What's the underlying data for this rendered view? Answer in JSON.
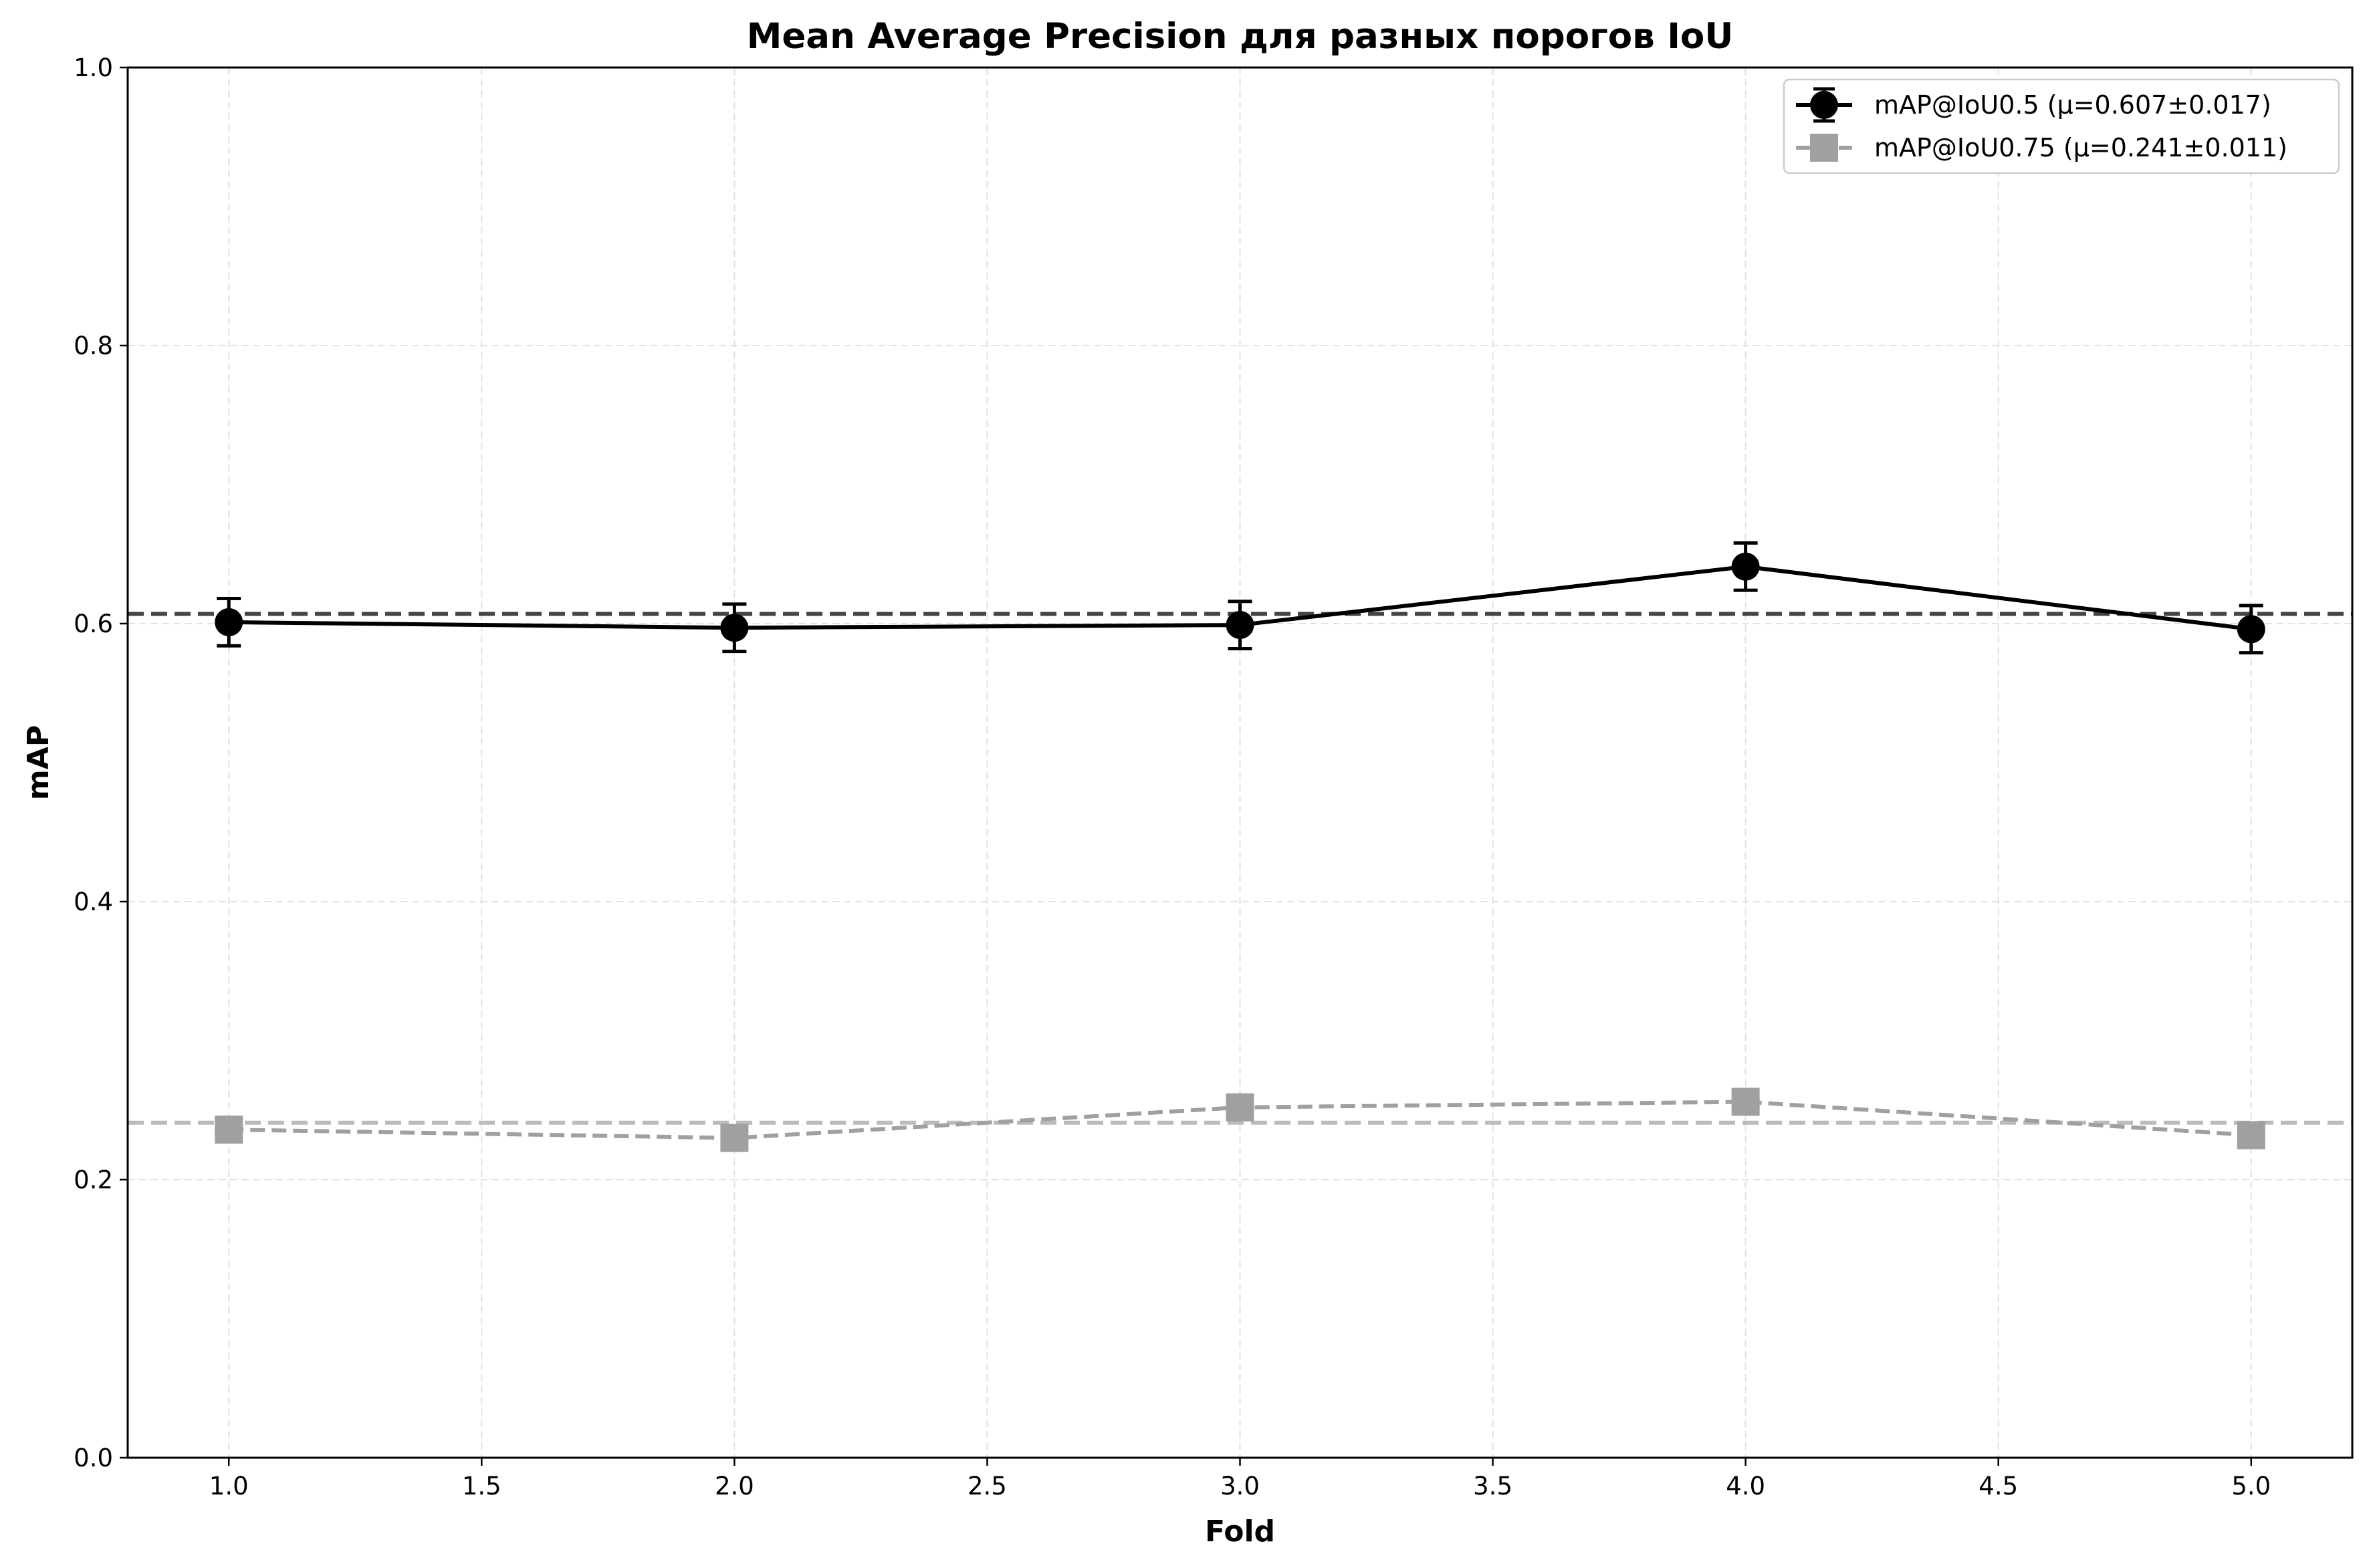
{
  "chart_data": {
    "type": "line",
    "title": "Mean Average Precision для разных порогов IoU",
    "xlabel": "Fold",
    "ylabel": "mAP",
    "xlim": [
      0.8,
      5.2
    ],
    "ylim": [
      0.0,
      1.0
    ],
    "xticks": [
      1.0,
      1.5,
      2.0,
      2.5,
      3.0,
      3.5,
      4.0,
      4.5,
      5.0
    ],
    "xtick_labels": [
      "1.0",
      "1.5",
      "2.0",
      "2.5",
      "3.0",
      "3.5",
      "4.0",
      "4.5",
      "5.0"
    ],
    "yticks": [
      0.0,
      0.2,
      0.4,
      0.6,
      0.8,
      1.0
    ],
    "ytick_labels": [
      "0.0",
      "0.2",
      "0.4",
      "0.6",
      "0.8",
      "1.0"
    ],
    "grid": true,
    "legend_position": "top-right",
    "x": [
      1,
      2,
      3,
      4,
      5
    ],
    "series": [
      {
        "name": "mAP@IoU0.5 (μ=0.607±0.017)",
        "values": [
          0.601,
          0.597,
          0.599,
          0.641,
          0.596
        ],
        "errors": [
          0.017,
          0.017,
          0.017,
          0.017,
          0.017
        ],
        "mean": 0.607,
        "color": "#000000",
        "mean_line_color": "#444444",
        "marker": "circle",
        "line_style": "solid"
      },
      {
        "name": "mAP@IoU0.75 (μ=0.241±0.011)",
        "values": [
          0.236,
          0.23,
          0.252,
          0.256,
          0.232
        ],
        "mean": 0.241,
        "color": "#a0a0a0",
        "mean_line_color": "#bbbbbb",
        "marker": "square",
        "line_style": "dashed"
      }
    ]
  }
}
